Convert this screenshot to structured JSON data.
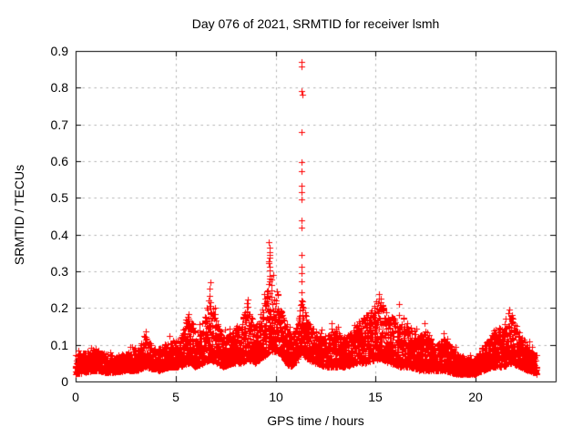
{
  "chart_data": {
    "type": "scatter",
    "title": "Day 076 of 2021, SRMTID for receiver lsmh",
    "xlabel": "GPS time / hours",
    "ylabel": "SRMTID / TECUs",
    "xlim": [
      0,
      24
    ],
    "ylim": [
      0,
      0.9
    ],
    "xticks": [
      {
        "v": 0,
        "label": "0"
      },
      {
        "v": 5,
        "label": "5"
      },
      {
        "v": 10,
        "label": "10"
      },
      {
        "v": 15,
        "label": "15"
      },
      {
        "v": 20,
        "label": "20"
      }
    ],
    "yticks": [
      {
        "v": 0.0,
        "label": "0"
      },
      {
        "v": 0.1,
        "label": "0.1"
      },
      {
        "v": 0.2,
        "label": "0.2"
      },
      {
        "v": 0.3,
        "label": "0.3"
      },
      {
        "v": 0.4,
        "label": "0.4"
      },
      {
        "v": 0.5,
        "label": "0.5"
      },
      {
        "v": 0.6,
        "label": "0.6"
      },
      {
        "v": 0.7,
        "label": "0.7"
      },
      {
        "v": 0.8,
        "label": "0.8"
      },
      {
        "v": 0.9,
        "label": "0.9"
      }
    ],
    "grid": true,
    "legend": "none",
    "marker": "plus",
    "marker_size_px": 7,
    "marker_color": "#ff0000",
    "grid_color": "#b5b5b5",
    "axis_color": "#000000",
    "background_color": "#ffffff",
    "data_start_hour": 0.0,
    "data_end_hour": 23.05,
    "sample_interval_hours": 0.0041667,
    "seed": 7,
    "envelope_note": "piecewise-linear envelope [hour, typical_min, typical_max] of the dense noise band read from the plot",
    "envelope": [
      [
        0.0,
        0.02,
        0.075
      ],
      [
        0.5,
        0.025,
        0.08
      ],
      [
        1.0,
        0.03,
        0.09
      ],
      [
        1.5,
        0.025,
        0.075
      ],
      [
        2.0,
        0.025,
        0.07
      ],
      [
        2.6,
        0.03,
        0.08
      ],
      [
        3.1,
        0.03,
        0.085
      ],
      [
        3.45,
        0.04,
        0.125
      ],
      [
        3.8,
        0.035,
        0.1
      ],
      [
        4.2,
        0.03,
        0.09
      ],
      [
        4.7,
        0.04,
        0.11
      ],
      [
        5.2,
        0.04,
        0.12
      ],
      [
        5.7,
        0.05,
        0.2
      ],
      [
        6.0,
        0.04,
        0.13
      ],
      [
        6.4,
        0.05,
        0.15
      ],
      [
        6.7,
        0.06,
        0.25
      ],
      [
        7.0,
        0.05,
        0.17
      ],
      [
        7.4,
        0.04,
        0.12
      ],
      [
        7.9,
        0.05,
        0.14
      ],
      [
        8.3,
        0.05,
        0.17
      ],
      [
        8.6,
        0.06,
        0.22
      ],
      [
        9.0,
        0.05,
        0.15
      ],
      [
        9.45,
        0.07,
        0.22
      ],
      [
        9.7,
        0.08,
        0.3
      ],
      [
        10.0,
        0.08,
        0.23
      ],
      [
        10.3,
        0.07,
        0.19
      ],
      [
        10.7,
        0.04,
        0.13
      ],
      [
        11.0,
        0.05,
        0.14
      ],
      [
        11.3,
        0.08,
        0.23
      ],
      [
        11.6,
        0.06,
        0.16
      ],
      [
        12.0,
        0.05,
        0.14
      ],
      [
        12.5,
        0.04,
        0.12
      ],
      [
        13.0,
        0.04,
        0.145
      ],
      [
        13.5,
        0.04,
        0.12
      ],
      [
        14.0,
        0.05,
        0.15
      ],
      [
        14.5,
        0.05,
        0.18
      ],
      [
        15.0,
        0.06,
        0.21
      ],
      [
        15.3,
        0.06,
        0.22
      ],
      [
        15.7,
        0.05,
        0.18
      ],
      [
        16.2,
        0.04,
        0.19
      ],
      [
        16.7,
        0.04,
        0.15
      ],
      [
        17.2,
        0.03,
        0.13
      ],
      [
        17.6,
        0.03,
        0.14
      ],
      [
        18.0,
        0.03,
        0.1
      ],
      [
        18.4,
        0.03,
        0.12
      ],
      [
        19.0,
        0.02,
        0.08
      ],
      [
        19.5,
        0.02,
        0.065
      ],
      [
        20.0,
        0.02,
        0.06
      ],
      [
        20.4,
        0.03,
        0.1
      ],
      [
        20.9,
        0.04,
        0.14
      ],
      [
        21.4,
        0.04,
        0.15
      ],
      [
        21.8,
        0.05,
        0.19
      ],
      [
        22.2,
        0.04,
        0.13
      ],
      [
        22.6,
        0.03,
        0.1
      ],
      [
        23.05,
        0.02,
        0.07
      ]
    ],
    "outliers_note": "explicit high points of the two spike columns [hour, SRMTID]",
    "outliers": [
      [
        11.29,
        0.87
      ],
      [
        11.31,
        0.857
      ],
      [
        11.3,
        0.79
      ],
      [
        11.32,
        0.782
      ],
      [
        11.3,
        0.68
      ],
      [
        11.29,
        0.598
      ],
      [
        11.31,
        0.573
      ],
      [
        11.3,
        0.532
      ],
      [
        11.29,
        0.515
      ],
      [
        11.31,
        0.497
      ],
      [
        11.3,
        0.44
      ],
      [
        11.29,
        0.418
      ],
      [
        11.31,
        0.345
      ],
      [
        11.3,
        0.312
      ],
      [
        11.29,
        0.296
      ],
      [
        11.31,
        0.272
      ],
      [
        11.3,
        0.242
      ],
      [
        9.67,
        0.38
      ],
      [
        9.69,
        0.365
      ],
      [
        9.68,
        0.352
      ],
      [
        9.7,
        0.345
      ],
      [
        9.68,
        0.338
      ],
      [
        9.67,
        0.322
      ],
      [
        9.69,
        0.312
      ],
      [
        9.68,
        0.302
      ],
      [
        9.7,
        0.288
      ],
      [
        9.68,
        0.272
      ],
      [
        9.67,
        0.265
      ],
      [
        10.05,
        0.245
      ],
      [
        10.12,
        0.235
      ],
      [
        6.68,
        0.252
      ],
      [
        6.7,
        0.232
      ],
      [
        15.15,
        0.225
      ],
      [
        15.05,
        0.218
      ],
      [
        8.62,
        0.222
      ],
      [
        9.48,
        0.225
      ]
    ]
  }
}
